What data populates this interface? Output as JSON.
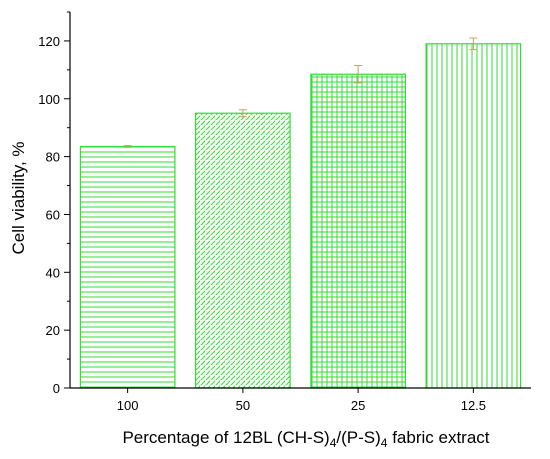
{
  "chart_data": {
    "type": "bar",
    "categories": [
      "100",
      "50",
      "25",
      "12.5"
    ],
    "values": [
      83.5,
      95.0,
      108.5,
      119.0
    ],
    "errors": [
      0.3,
      1.2,
      3.0,
      2.0
    ],
    "title": "",
    "xlabel": {
      "prefix": "Percentage of 12BL (CH-S)",
      "sub1": "4",
      "middle": "/(P-S)",
      "sub2": "4",
      "suffix": " fabric extract"
    },
    "ylabel": "Cell viability, %",
    "ylim": [
      0,
      130
    ],
    "yticks": [
      0,
      20,
      40,
      60,
      80,
      100,
      120
    ],
    "grid": false,
    "legend": "none",
    "patterns": [
      "horizontal-lines",
      "diagonal-lines",
      "grid",
      "vertical-lines"
    ],
    "colors": {
      "bar": "#33dd33",
      "error_bar": "#c8a060",
      "axis": "#000000"
    }
  }
}
